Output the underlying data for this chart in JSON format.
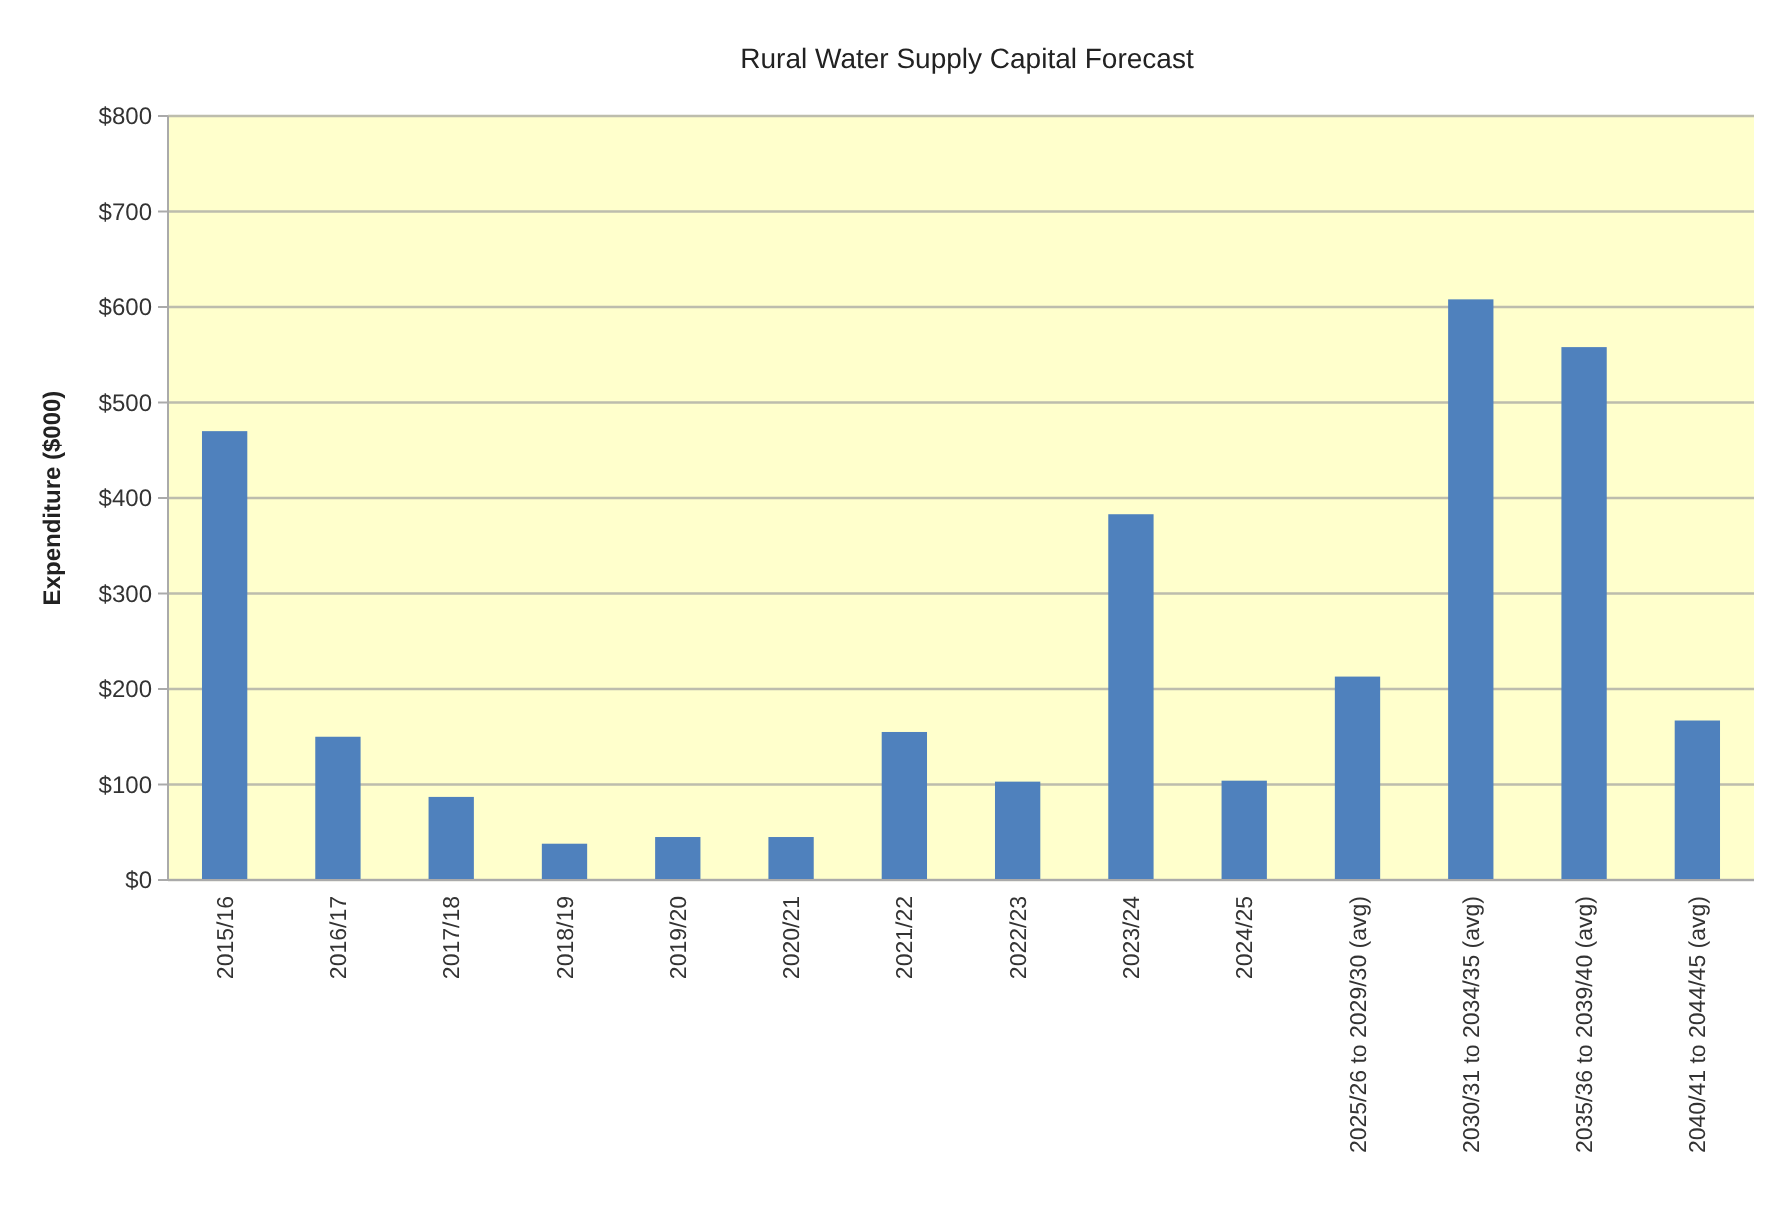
{
  "chart_data": {
    "type": "bar",
    "title": "Rural Water Supply Capital Forecast",
    "ylabel": "Expenditure ($000)",
    "categories": [
      "2015/16",
      "2016/17",
      "2017/18",
      "2018/19",
      "2019/20",
      "2020/21",
      "2021/22",
      "2022/23",
      "2023/24",
      "2024/25",
      "2025/26 to 2029/30 (avg)",
      "2030/31 to 2034/35 (avg)",
      "2035/36 to 2039/40 (avg)",
      "2040/41 to 2044/45 (avg)"
    ],
    "values": [
      470,
      150,
      87,
      38,
      45,
      45,
      155,
      103,
      383,
      104,
      213,
      608,
      558,
      167
    ],
    "color": "#4f81bd",
    "ylim": [
      0,
      800
    ],
    "yticks": [
      {
        "value": 0,
        "label": "$0"
      },
      {
        "value": 100,
        "label": "$100"
      },
      {
        "value": 200,
        "label": "$200"
      },
      {
        "value": 300,
        "label": "$300"
      },
      {
        "value": 400,
        "label": "$400"
      },
      {
        "value": 500,
        "label": "$500"
      },
      {
        "value": 600,
        "label": "$600"
      },
      {
        "value": 700,
        "label": "$700"
      },
      {
        "value": 800,
        "label": "$800"
      }
    ],
    "grid": "y"
  }
}
